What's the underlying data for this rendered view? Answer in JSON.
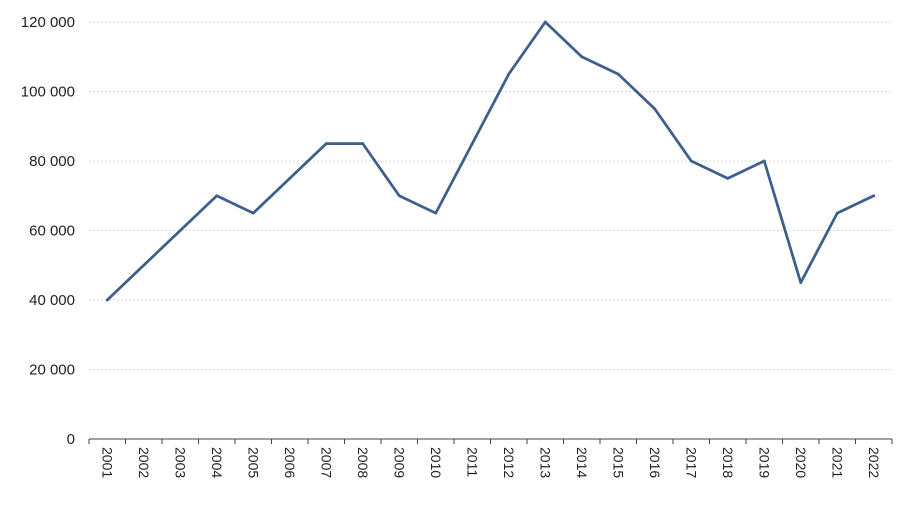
{
  "chart_data": {
    "type": "line",
    "title": "",
    "xlabel": "",
    "ylabel": "",
    "categories": [
      "2001",
      "2002",
      "2003",
      "2004",
      "2005",
      "2006",
      "2007",
      "2008",
      "2009",
      "2010",
      "2011",
      "2012",
      "2013",
      "2014",
      "2015",
      "2016",
      "2017",
      "2018",
      "2019",
      "2020",
      "2021",
      "2022"
    ],
    "series": [
      {
        "values": [
          40000,
          50000,
          60000,
          70000,
          65000,
          75000,
          85000,
          85000,
          70000,
          65000,
          85000,
          105000,
          120000,
          110000,
          105000,
          95000,
          80000,
          75000,
          80000,
          45000,
          65000,
          70000
        ],
        "color": "#3d5f8c"
      }
    ],
    "ylim": [
      0,
      120000
    ],
    "yticks": [
      0,
      20000,
      40000,
      60000,
      80000,
      100000,
      120000
    ],
    "ytick_labels": [
      "0",
      "20 000",
      "40 000",
      "60 000",
      "80 000",
      "100 000",
      "120 000"
    ],
    "grid": true,
    "legend": "none",
    "colors": {
      "line": "#3d5f8c",
      "grid": "#d9d9d9",
      "axis": "#404040"
    }
  }
}
